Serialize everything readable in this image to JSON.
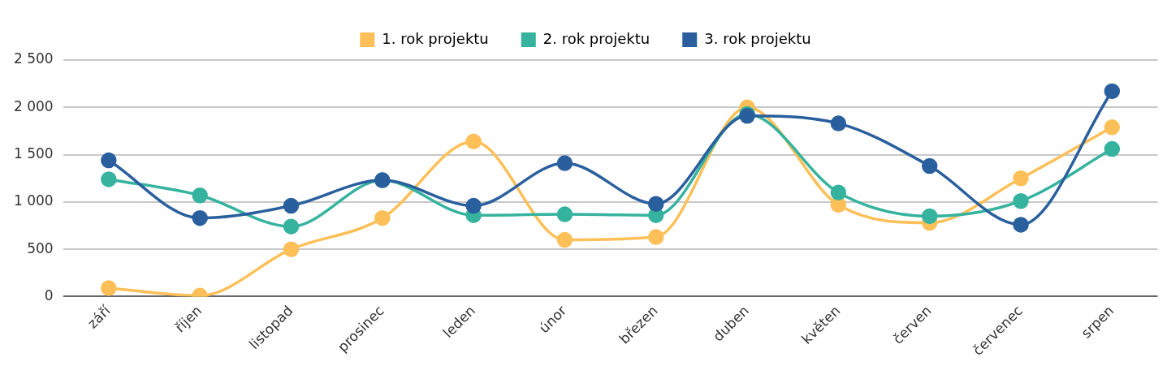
{
  "chart_data": {
    "type": "line",
    "categories": [
      "září",
      "říjen",
      "listopad",
      "prosinec",
      "leden",
      "únor",
      "březen",
      "duben",
      "květen",
      "červen",
      "červenec",
      "srpen"
    ],
    "series": [
      {
        "name": "1. rok projektu",
        "color": "#fdbf57",
        "values": [
          90,
          10,
          500,
          830,
          1640,
          600,
          630,
          2000,
          970,
          780,
          1250,
          1790
        ]
      },
      {
        "name": "2. rok projektu",
        "color": "#36b39e",
        "values": [
          1240,
          1070,
          740,
          1230,
          860,
          870,
          860,
          1930,
          1100,
          850,
          1010,
          1560
        ]
      },
      {
        "name": "3. rok projektu",
        "color": "#2a5f9e",
        "values": [
          1440,
          830,
          960,
          1230,
          960,
          1410,
          980,
          1910,
          1830,
          1380,
          760,
          2170
        ]
      }
    ],
    "ylim": [
      0,
      2500
    ],
    "yticks": [
      {
        "value": 0,
        "label": "0"
      },
      {
        "value": 500,
        "label": "500"
      },
      {
        "value": 1000,
        "label": "1 000"
      },
      {
        "value": 1500,
        "label": "1 500"
      },
      {
        "value": 2000,
        "label": "2 000"
      },
      {
        "value": 2500,
        "label": "2 500"
      }
    ],
    "grid": "y",
    "legend": "top",
    "marker": "circle",
    "line_style": "solid"
  }
}
